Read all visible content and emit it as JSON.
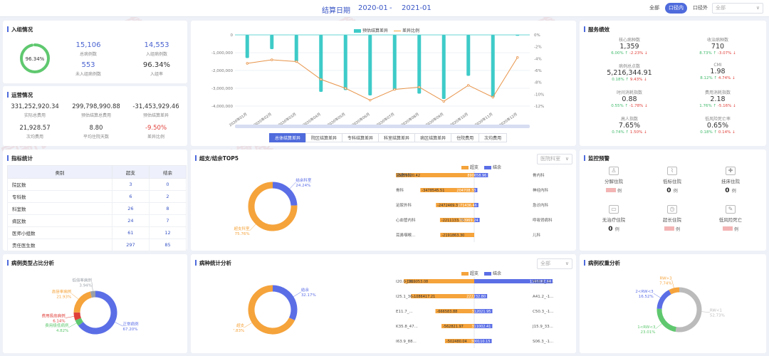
{
  "topbar": {
    "date_label": "结算日期",
    "date_from": "2020-01",
    "date_sep": "-",
    "date_to": "2021-01",
    "scope_all": "全部",
    "scope_in": "口径内",
    "scope_out": "口径外",
    "select_placeholder": "全部",
    "select_arrow": "∨"
  },
  "admission": {
    "title": "入组情况",
    "rate_ring": 96.34,
    "ring_label": "96.34%",
    "total": "15,106",
    "total_cap": "总病例数",
    "in_group": "14,553",
    "in_group_cap": "入组病例数",
    "not_in": "553",
    "not_in_cap": "未入组病例数",
    "rate": "96.34%",
    "rate_cap": "入组率"
  },
  "operation": {
    "title": "运营情况",
    "actual": "331,252,920.34",
    "actual_cap": "实际总费用",
    "predict": "299,798,990.88",
    "predict_cap": "预估结算总费用",
    "diff": "-31,453,929.46",
    "diff_cap": "预估结算差异",
    "avg_fee": "21,928.57",
    "avg_fee_cap": "次均费用",
    "avg_days": "8.80",
    "avg_days_cap": "平均住院天数",
    "ratio": "-9.50%",
    "ratio_cap": "差异比例"
  },
  "trend": {
    "legend_bar": "预估结算差异",
    "legend_line": "差异比例",
    "tabs": [
      "总体结算差异",
      "院区结算差异",
      "专科结算差异",
      "科室结算差异",
      "病区结算差异",
      "住院费用",
      "次均费用"
    ],
    "active_tab": 0
  },
  "chart_data": [
    {
      "type": "bar",
      "title": "",
      "categories": [
        "2020年01月",
        "2020年02月",
        "2020年03月",
        "2020年04月",
        "2020年05月",
        "2020年06月",
        "2020年07月",
        "2020年08月",
        "2020年09月",
        "2020年10月",
        "2020年11月",
        "2020年12月"
      ],
      "series": [
        {
          "name": "预估结算差异",
          "type": "bar",
          "axis": "left",
          "values": [
            -1300000,
            -800000,
            -1500000,
            -3200000,
            -3100000,
            -3400000,
            -3100000,
            -3300000,
            -3600000,
            -2300000,
            -3500000,
            -50000
          ]
        },
        {
          "name": "差异比例",
          "type": "line",
          "axis": "right",
          "values": [
            -4.8,
            -4.2,
            -4.5,
            -7.5,
            -9.0,
            -11.0,
            -9.2,
            -8.8,
            -11.2,
            -8.5,
            -10.5,
            -3.8
          ]
        }
      ],
      "y_left": {
        "min": -4000000,
        "max": 0,
        "ticks": [
          "0",
          "-1,000,000",
          "-2,000,000",
          "-3,000,000",
          "-4,000,000"
        ]
      },
      "y_right": {
        "min": -12,
        "max": 0,
        "ticks": [
          "0%",
          "-2%",
          "-4%",
          "-6%",
          "-8%",
          "-10%",
          "-12%"
        ]
      }
    },
    {
      "type": "pie",
      "title": "超支/结余TOP5",
      "categories": [
        "结余科室",
        "超支科室"
      ],
      "values": [
        24.24,
        75.76
      ],
      "labels": [
        "结余科室\n24.24%",
        "超支科室\n75.76%"
      ]
    },
    {
      "type": "bar",
      "title": "超支/结余TOP5 科室",
      "series": [
        {
          "name": "超支",
          "categories": [
            "普通外科",
            "骨科",
            "泌尿外科",
            "心血管内科",
            "耳鼻咽喉..."
          ],
          "values": [
            -5059320.42,
            -3478545.51,
            -2472469.32,
            -2211133.76,
            -2191863.3
          ]
        },
        {
          "name": "结余",
          "categories": [
            "骨内科",
            "神经内科",
            "急诊内科",
            "呼吸肾病科",
            "儿科"
          ],
          "values": [
            890658.96,
            204708.33,
            271436.46,
            350969.24,
            0
          ]
        }
      ]
    },
    {
      "type": "pie",
      "title": "病例类型占比分析",
      "categories": [
        "正常病例",
        "费用极低病例",
        "费用极高病例",
        "高倍率病例",
        "低倍率病例"
      ],
      "values": [
        67.2,
        4.82,
        6.14,
        21.93,
        3.94
      ]
    },
    {
      "type": "pie",
      "title": "病种统计分析",
      "categories": [
        "结余",
        "超支"
      ],
      "values": [
        32.17,
        67.83
      ]
    },
    {
      "type": "bar",
      "title": "病种统计 TOP",
      "series": [
        {
          "name": "超支",
          "categories": [
            "I20.0_36...",
            "I25.1_36...",
            "E11.7_...",
            "K35.8_47...",
            "I63.9_88..."
          ],
          "values": [
            -1209053.08,
            -1086417.21,
            -666583.88,
            -562821.97,
            -502480.04
          ]
        },
        {
          "name": "结余",
          "categories": [
            "N18.2_-1...",
            "A41.2_-1...",
            "C50.3_-1...",
            "J15.9_33...",
            "S06.3_-1..."
          ],
          "values": [
            1345967.44,
            222232.8,
            312021.95,
            311002.41,
            300110.15
          ]
        }
      ]
    },
    {
      "type": "pie",
      "title": "病例权重分析",
      "categories": [
        "RW<1",
        "1<RW<3",
        "2<RW<3",
        "RW>3"
      ],
      "values": [
        52.73,
        23.01,
        16.52,
        7.74
      ]
    }
  ],
  "services": {
    "title": "服务绩效",
    "items": [
      {
        "label": "核心病种数",
        "value": "1,359",
        "p1": "6.00%",
        "p2": "-2.23%"
      },
      {
        "label": "收治病种数",
        "value": "710",
        "p1": "8.73%",
        "p2": "-3.07%"
      },
      {
        "label": "病例总点数",
        "value": "5,216,344.91",
        "p1": "0.18%",
        "p2": "9.43%"
      },
      {
        "label": "CMI",
        "value": "1.98",
        "p1": "8.12%",
        "p2": "4.74%"
      },
      {
        "label": "时间消耗指数",
        "value": "0.88",
        "p1": "0.55%",
        "p2": "-1.78%"
      },
      {
        "label": "费用消耗指数",
        "value": "2.18",
        "p1": "1.76%",
        "p2": "-5.16%"
      },
      {
        "label": "高人指数",
        "value": "7.65%",
        "p1": "0.74%",
        "p2": "1.50%"
      },
      {
        "label": "低风险死亡率",
        "value": "0.65%",
        "p1": "0.18%",
        "p2": "0.14%"
      }
    ]
  },
  "indicators": {
    "title": "指标统计",
    "headers": [
      "类别",
      "超支",
      "结余"
    ],
    "rows": [
      {
        "name": "院区数",
        "over": "3",
        "save": "0"
      },
      {
        "name": "专科数",
        "over": "6",
        "save": "2"
      },
      {
        "name": "科室数",
        "over": "26",
        "save": "8"
      },
      {
        "name": "病区数",
        "over": "24",
        "save": "7"
      },
      {
        "name": "医师小组数",
        "over": "61",
        "save": "12"
      },
      {
        "name": "责任医生数",
        "over": "297",
        "save": "85"
      }
    ]
  },
  "top5": {
    "title": "超支/结余TOP5",
    "select": "医院科室",
    "legend_over": "超支",
    "legend_save": "结余"
  },
  "case_type": {
    "title": "病例类型占比分析"
  },
  "disease": {
    "title": "病种统计分析",
    "select": "全部",
    "legend_over": "超支",
    "legend_save": "结余"
  },
  "weight": {
    "title": "病例权重分析"
  },
  "monitor": {
    "title": "监控预警",
    "items": [
      {
        "label": "分解住院",
        "value": "",
        "unit": "例",
        "icon": "user-icon"
      },
      {
        "label": "低标住院",
        "value": "0",
        "unit": "例",
        "icon": "chart-icon"
      },
      {
        "label": "挂床住院",
        "value": "0",
        "unit": "例",
        "icon": "plus-box-icon"
      },
      {
        "label": "无治疗住院",
        "value": "0",
        "unit": "例",
        "icon": "bed-icon"
      },
      {
        "label": "超长住院",
        "value": "",
        "unit": "例",
        "icon": "clock-bed-icon"
      },
      {
        "label": "低风险死亡",
        "value": "",
        "unit": "例",
        "icon": "pen-icon"
      }
    ]
  },
  "watermark": "国新健康",
  "colors": {
    "accent": "#4f6bdc",
    "teal": "#3ecbc8",
    "orange": "#f5a33b",
    "green": "#5fc86f",
    "red": "#e0403a"
  }
}
